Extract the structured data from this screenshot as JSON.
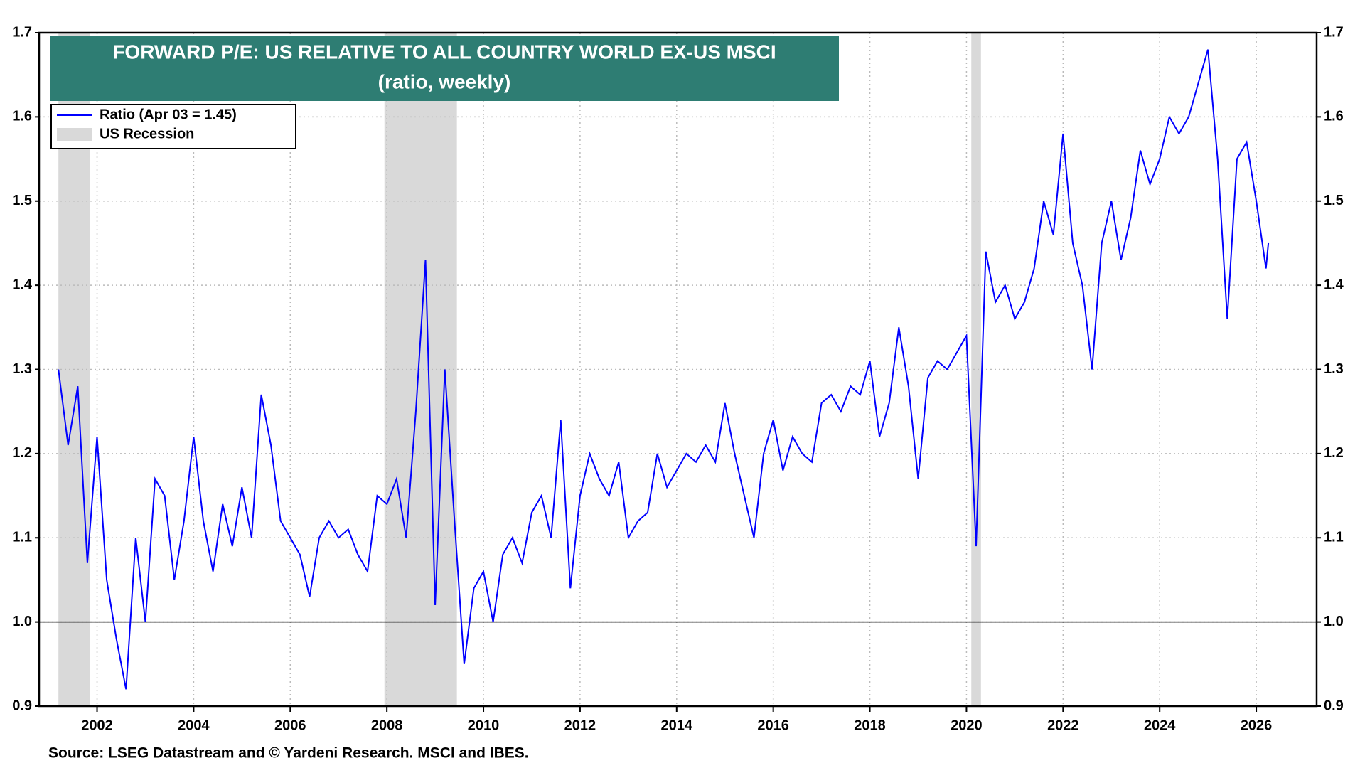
{
  "chart_data": {
    "type": "line",
    "title": "FORWARD P/E: US RELATIVE TO ALL COUNTRY WORLD EX-US MSCI",
    "subtitle": "(ratio, weekly)",
    "source": "Source: LSEG Datastream and © Yardeni Research. MSCI and IBES.",
    "x": [
      2001.2,
      2001.4,
      2001.6,
      2001.8,
      2002.0,
      2002.2,
      2002.4,
      2002.6,
      2002.8,
      2003.0,
      2003.2,
      2003.4,
      2003.6,
      2003.8,
      2004.0,
      2004.2,
      2004.4,
      2004.6,
      2004.8,
      2005.0,
      2005.2,
      2005.4,
      2005.6,
      2005.8,
      2006.0,
      2006.2,
      2006.4,
      2006.6,
      2006.8,
      2007.0,
      2007.2,
      2007.4,
      2007.6,
      2007.8,
      2008.0,
      2008.2,
      2008.4,
      2008.6,
      2008.8,
      2009.0,
      2009.2,
      2009.4,
      2009.6,
      2009.8,
      2010.0,
      2010.2,
      2010.4,
      2010.6,
      2010.8,
      2011.0,
      2011.2,
      2011.4,
      2011.6,
      2011.8,
      2012.0,
      2012.2,
      2012.4,
      2012.6,
      2012.8,
      2013.0,
      2013.2,
      2013.4,
      2013.6,
      2013.8,
      2014.0,
      2014.2,
      2014.4,
      2014.6,
      2014.8,
      2015.0,
      2015.2,
      2015.4,
      2015.6,
      2015.8,
      2016.0,
      2016.2,
      2016.4,
      2016.6,
      2016.8,
      2017.0,
      2017.2,
      2017.4,
      2017.6,
      2017.8,
      2018.0,
      2018.2,
      2018.4,
      2018.6,
      2018.8,
      2019.0,
      2019.2,
      2019.4,
      2019.6,
      2019.8,
      2020.0,
      2020.2,
      2020.4,
      2020.6,
      2020.8,
      2021.0,
      2021.2,
      2021.4,
      2021.6,
      2021.8,
      2022.0,
      2022.2,
      2022.4,
      2022.6,
      2022.8,
      2023.0,
      2023.2,
      2023.4,
      2023.6,
      2023.8,
      2024.0,
      2024.2,
      2024.4,
      2024.6,
      2024.8,
      2025.0,
      2025.2,
      2025.4,
      2025.6,
      2025.8,
      2026.0,
      2026.2,
      2026.25
    ],
    "series": [
      {
        "name": "Ratio (Apr 03 = 1.45)",
        "color": "#0000ff",
        "values": [
          1.3,
          1.21,
          1.28,
          1.07,
          1.22,
          1.05,
          0.98,
          0.92,
          1.1,
          1.0,
          1.17,
          1.15,
          1.05,
          1.12,
          1.22,
          1.12,
          1.06,
          1.14,
          1.09,
          1.16,
          1.1,
          1.27,
          1.21,
          1.12,
          1.1,
          1.08,
          1.03,
          1.1,
          1.12,
          1.1,
          1.11,
          1.08,
          1.06,
          1.15,
          1.14,
          1.17,
          1.1,
          1.25,
          1.43,
          1.02,
          1.3,
          1.12,
          0.95,
          1.04,
          1.06,
          1.0,
          1.08,
          1.1,
          1.07,
          1.13,
          1.15,
          1.1,
          1.24,
          1.04,
          1.15,
          1.2,
          1.17,
          1.15,
          1.19,
          1.1,
          1.12,
          1.13,
          1.2,
          1.16,
          1.18,
          1.2,
          1.19,
          1.21,
          1.19,
          1.26,
          1.2,
          1.15,
          1.1,
          1.2,
          1.24,
          1.18,
          1.22,
          1.2,
          1.19,
          1.26,
          1.27,
          1.25,
          1.28,
          1.27,
          1.31,
          1.22,
          1.26,
          1.35,
          1.28,
          1.17,
          1.29,
          1.31,
          1.3,
          1.32,
          1.34,
          1.09,
          1.44,
          1.38,
          1.4,
          1.36,
          1.38,
          1.42,
          1.5,
          1.46,
          1.58,
          1.45,
          1.4,
          1.3,
          1.45,
          1.5,
          1.43,
          1.48,
          1.56,
          1.52,
          1.55,
          1.6,
          1.58,
          1.6,
          1.64,
          1.68,
          1.55,
          1.36,
          1.55,
          1.57,
          1.5,
          1.42,
          1.45
        ]
      }
    ],
    "recession_label": "US Recession",
    "recession_color": "#d9d9d9",
    "recessions": [
      [
        2001.2,
        2001.85
      ],
      [
        2007.95,
        2009.45
      ],
      [
        2020.1,
        2020.3
      ]
    ],
    "reference_line": 1,
    "xlim": [
      2000.8,
      2027.25
    ],
    "xticks": [
      2002,
      2004,
      2006,
      2008,
      2010,
      2012,
      2014,
      2016,
      2018,
      2020,
      2022,
      2024,
      2026
    ],
    "ylim": [
      0.9,
      1.7
    ],
    "yticks": [
      0.9,
      {
        "value": 1,
        "label": "1.0"
      },
      1.1,
      1.2,
      1.3,
      1.4,
      1.5,
      1.6,
      1.7
    ],
    "grid": true,
    "title_color": "#2e7d73"
  }
}
